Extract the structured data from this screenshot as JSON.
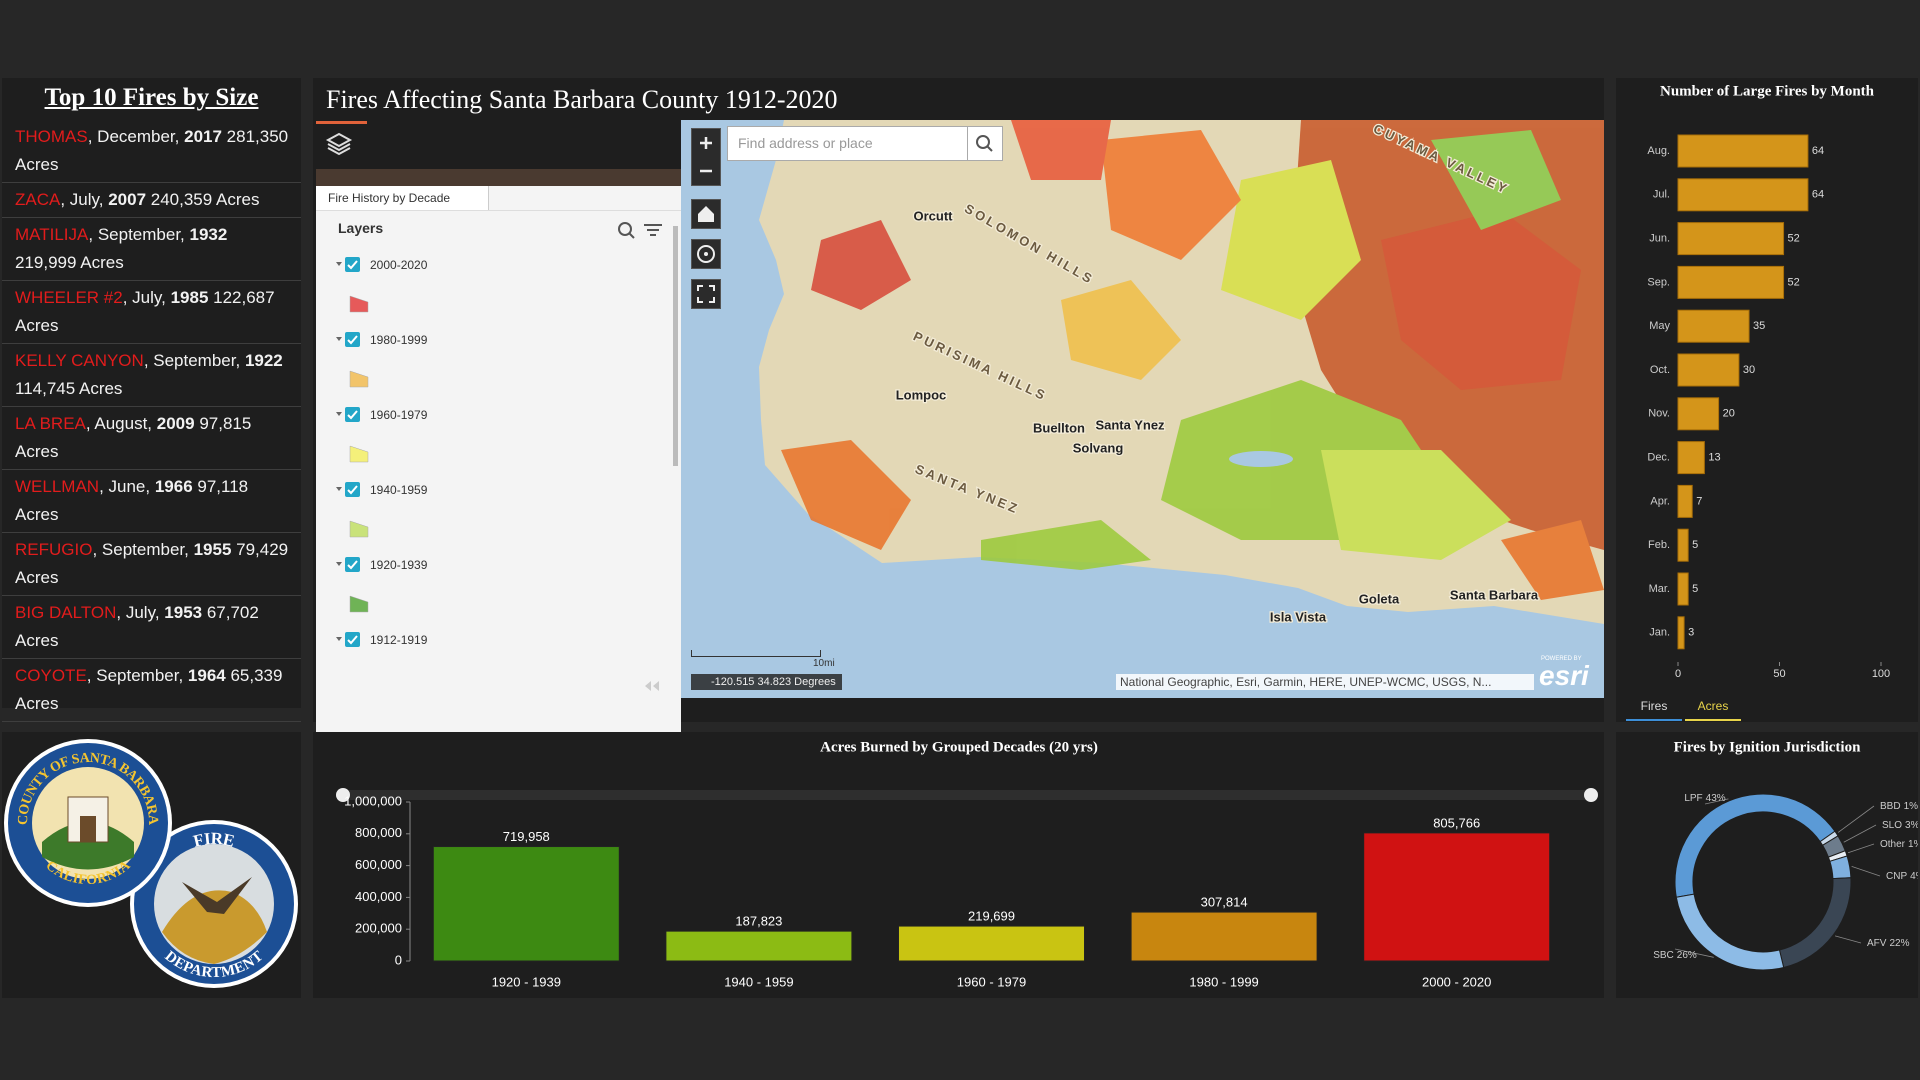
{
  "left_panel": {
    "title": "Top 10 Fires by Size",
    "fires": [
      {
        "name": "THOMAS",
        "month": ", December, ",
        "year": "2017",
        "acres": " 281,350 Acres"
      },
      {
        "name": "ZACA",
        "month": ", July, ",
        "year": "2007",
        "acres": " 240,359 Acres"
      },
      {
        "name": "MATILIJA",
        "month": ", September, ",
        "year": "1932",
        "acres": " 219,999 Acres"
      },
      {
        "name": "WHEELER #2",
        "month": ", July, ",
        "year": "1985",
        "acres": " 122,687 Acres"
      },
      {
        "name": "KELLY CANYON",
        "month": ", September, ",
        "year": "1922",
        "acres": " 114,745 Acres"
      },
      {
        "name": "LA BREA",
        "month": ", August, ",
        "year": "2009",
        "acres": " 97,815 Acres"
      },
      {
        "name": "WELLMAN",
        "month": ", June, ",
        "year": "1966",
        "acres": " 97,118 Acres"
      },
      {
        "name": "REFUGIO",
        "month": ", September, ",
        "year": "1955",
        "acres": " 79,429 Acres"
      },
      {
        "name": "BIG DALTON",
        "month": ", July, ",
        "year": "1953",
        "acres": " 67,702 Acres"
      },
      {
        "name": "COYOTE",
        "month": ", September, ",
        "year": "1964",
        "acres": " 65,339 Acres"
      }
    ]
  },
  "logo": {
    "county_top": "COUNTY OF SANTA BARBARA",
    "county_bottom": "CALIFORNIA",
    "dept_top": "FIRE",
    "dept_bottom": "DEPARTMENT"
  },
  "map_panel": {
    "title": "Fires Affecting Santa Barbara County 1912-2020",
    "layer_tab": "Fire History by Decade",
    "layers_heading": "Layers",
    "layers": [
      {
        "name": "2000-2020",
        "color": "#e65a5a"
      },
      {
        "name": "1980-1999",
        "color": "#f2c46a"
      },
      {
        "name": "1960-1979",
        "color": "#f4f07a"
      },
      {
        "name": "1940-1959",
        "color": "#c9e27a"
      },
      {
        "name": "1920-1939",
        "color": "#6fb356"
      },
      {
        "name": "1912-1919"
      }
    ],
    "search_placeholder": "Find address or place",
    "coordinates": "-120.515 34.823 Degrees",
    "scale": "10mi",
    "attribution": "National Geographic, Esri, Garmin, HERE, UNEP-WCMC, USGS, N...",
    "powered_by": "POWERED BY",
    "logo": "esri",
    "places": [
      "Orcutt",
      "Lompoc",
      "Buellton",
      "Santa Ynez",
      "Solvang",
      "Goleta",
      "Santa Barbara",
      "Isla Vista",
      "SOLOMON HILLS",
      "PURISIMA HILLS",
      "SANTA YNEZ",
      "CUYAMA VALLEY"
    ]
  },
  "toggle_tabs": [
    "Fires",
    "Acres"
  ],
  "chart_data": [
    {
      "type": "barh",
      "title": "Number of Large Fires by Month",
      "categories": [
        "Aug.",
        "Jul.",
        "Jun.",
        "Sep.",
        "May",
        "Oct.",
        "Nov.",
        "Dec.",
        "Apr.",
        "Feb.",
        "Mar.",
        "Jan."
      ],
      "values": [
        64,
        64,
        52,
        52,
        35,
        30,
        20,
        13,
        7,
        5,
        5,
        3
      ],
      "color": "#d4951a",
      "xlim": [
        0,
        100
      ],
      "xticks": [
        0,
        50,
        100
      ]
    },
    {
      "type": "bar",
      "title": "Acres Burned by Grouped Decades (20 yrs)",
      "categories": [
        "1920 - 1939",
        "1940 - 1959",
        "1960 - 1979",
        "1980 - 1999",
        "2000 - 2020"
      ],
      "values": [
        719958,
        187823,
        219699,
        307814,
        805766
      ],
      "value_labels": [
        "719,958",
        "187,823",
        "219,699",
        "307,814",
        "805,766"
      ],
      "colors": [
        "#3d8a12",
        "#8cbb14",
        "#c9c412",
        "#c8860f",
        "#d01212"
      ],
      "ylim": [
        0,
        1000000
      ],
      "yticks": [
        0,
        {
          "value": 200000,
          "label": "200,000"
        },
        {
          "value": 400000,
          "label": "400,000"
        },
        {
          "value": 600000,
          "label": "600,000"
        },
        {
          "value": 800000,
          "label": "800,000"
        },
        {
          "value": 1000000,
          "label": "1,000,000"
        }
      ]
    },
    {
      "type": "donut",
      "title": "Fires by Ignition Jurisdiction",
      "categories": [
        "LPF",
        "BBD",
        "SLO",
        "Other",
        "CNP",
        "AFV",
        "SBC"
      ],
      "values": [
        43,
        1,
        3,
        1,
        4,
        22,
        26
      ],
      "value_labels": [
        "43%",
        "1%",
        "3%",
        "1%",
        "4%",
        "22%",
        "26%"
      ],
      "colors": [
        "#5b9ad6",
        "#c9d9ea",
        "#6d7c8c",
        "#e8eef5",
        "#7fb0df",
        "#3a4654",
        "#8dbbe6"
      ]
    }
  ]
}
